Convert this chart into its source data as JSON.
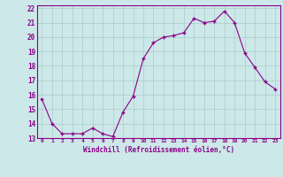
{
  "x": [
    0,
    1,
    2,
    3,
    4,
    5,
    6,
    7,
    8,
    9,
    10,
    11,
    12,
    13,
    14,
    15,
    16,
    17,
    18,
    19,
    20,
    21,
    22,
    23
  ],
  "y": [
    15.7,
    14.0,
    13.3,
    13.3,
    13.3,
    13.7,
    13.3,
    13.1,
    14.8,
    15.9,
    18.5,
    19.6,
    20.0,
    20.1,
    20.3,
    21.3,
    21.0,
    21.1,
    21.8,
    21.0,
    18.9,
    17.9,
    16.9,
    16.4
  ],
  "line_color": "#8B008B",
  "marker": "+",
  "marker_size": 3,
  "marker_color": "#8B008B",
  "bg_color": "#cce8e8",
  "grid_color": "#aacccc",
  "xlabel": "Windchill (Refroidissement éolien,°C)",
  "xlabel_color": "#8B008B",
  "tick_color": "#8B008B",
  "ylim": [
    13,
    22
  ],
  "xlim": [
    -0.5,
    23.5
  ],
  "yticks": [
    13,
    14,
    15,
    16,
    17,
    18,
    19,
    20,
    21,
    22
  ],
  "xticks": [
    0,
    1,
    2,
    3,
    4,
    5,
    6,
    7,
    8,
    9,
    10,
    11,
    12,
    13,
    14,
    15,
    16,
    17,
    18,
    19,
    20,
    21,
    22,
    23
  ],
  "title_color": "#8B008B",
  "spine_color": "#8B008B"
}
